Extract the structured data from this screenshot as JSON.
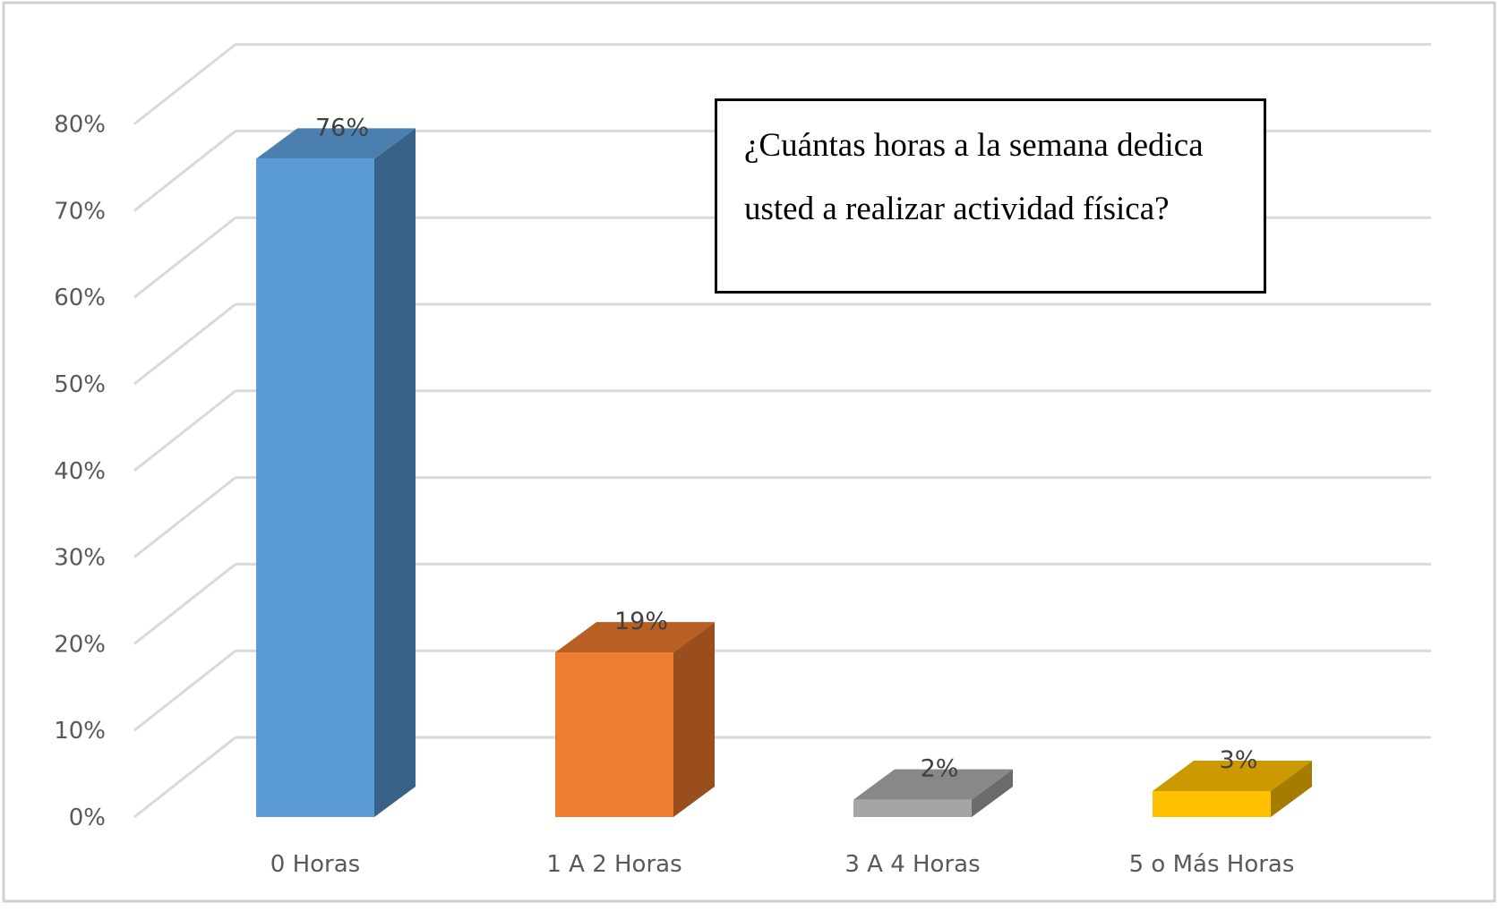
{
  "chart_data": {
    "type": "bar",
    "categories": [
      "0 Horas",
      "1 A 2 Horas",
      "3 A 4 Horas",
      "5 o Más Horas"
    ],
    "values": [
      76,
      19,
      2,
      3
    ],
    "data_labels": [
      "76%",
      "19%",
      "2%",
      "3%"
    ],
    "yticks": [
      "0%",
      "10%",
      "20%",
      "30%",
      "40%",
      "50%",
      "60%",
      "70%",
      "80%"
    ],
    "ylim": [
      0,
      80
    ],
    "title": "",
    "xlabel": "",
    "ylabel": "",
    "grid": true,
    "legend": "none",
    "style": "3d-column",
    "colors": {
      "front": [
        "#5B9BD5",
        "#ED7D31",
        "#A5A5A5",
        "#FFC000"
      ],
      "side": [
        "#386288",
        "#9A4E1E",
        "#6B6B6B",
        "#A67C00"
      ],
      "top": [
        "#4A7FB0",
        "#B85F24",
        "#888888",
        "#CC9A00"
      ]
    }
  },
  "annotation": {
    "text": "¿Cuántas horas a la semana dedica usted a realizar actividad física?"
  }
}
